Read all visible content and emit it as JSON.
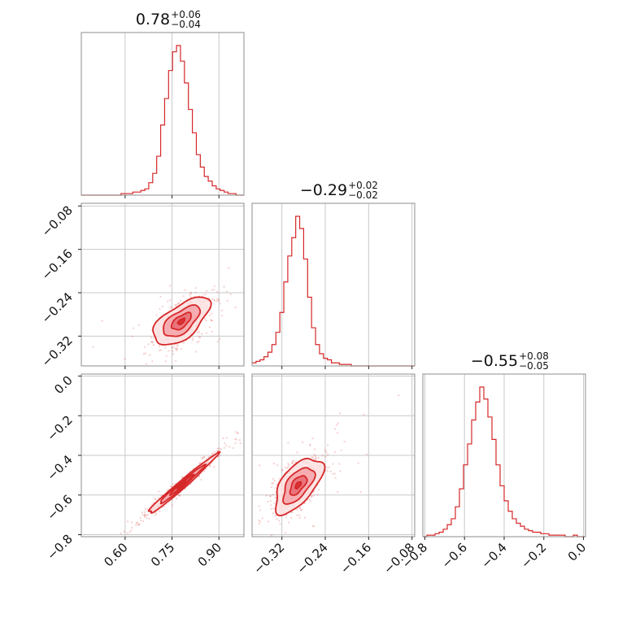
{
  "chart_data": {
    "type": "corner",
    "color": "#d62728",
    "contour_fill_colors": [
      "#fde2e2",
      "#f5a3a8",
      "#e86a72",
      "#d62728"
    ],
    "parameters": [
      {
        "summary": {
          "median": "0.78",
          "upper": "+0.06",
          "lower": "−0.04"
        },
        "range": [
          0.46,
          0.98
        ],
        "ticks": [
          0.6,
          0.75,
          0.9
        ],
        "tick_labels": [
          "0.60",
          "0.75",
          "0.90"
        ]
      },
      {
        "summary": {
          "median": "−0.29",
          "upper": "+0.02",
          "lower": "−0.02"
        },
        "range": [
          -0.375,
          -0.075
        ],
        "ticks": [
          -0.32,
          -0.24,
          -0.16,
          -0.08
        ],
        "tick_labels": [
          "−0.32",
          "−0.24",
          "−0.16",
          "−0.08"
        ]
      },
      {
        "summary": {
          "median": "−0.55",
          "upper": "+0.08",
          "lower": "−0.05"
        },
        "range": [
          -0.81,
          0.01
        ],
        "ticks": [
          -0.8,
          -0.6,
          -0.4,
          -0.2,
          0.0
        ],
        "tick_labels": [
          "−0.8",
          "−0.6",
          "−0.4",
          "−0.2",
          "0.0"
        ]
      }
    ],
    "histograms": [
      {
        "bins": [
          0.46,
          0.98
        ],
        "counts": [
          0,
          0,
          0,
          0,
          0,
          0,
          0,
          0,
          0,
          0,
          1,
          1,
          1,
          2,
          2,
          3,
          4,
          8,
          14,
          25,
          45,
          62,
          80,
          92,
          96,
          86,
          72,
          55,
          40,
          26,
          18,
          12,
          9,
          6,
          4,
          3,
          2,
          1,
          1,
          0,
          0
        ]
      },
      {
        "bins": [
          -0.375,
          -0.075
        ],
        "counts": [
          2,
          3,
          4,
          6,
          9,
          14,
          22,
          35,
          55,
          72,
          84,
          98,
          90,
          70,
          45,
          25,
          14,
          8,
          5,
          4,
          2,
          2,
          1,
          1,
          1,
          0,
          0,
          0,
          0,
          0,
          0,
          0,
          0,
          0,
          0,
          0,
          0,
          0,
          0,
          0,
          0
        ]
      },
      {
        "bins": [
          -0.81,
          0.01
        ],
        "counts": [
          0,
          1,
          1,
          2,
          3,
          5,
          8,
          12,
          20,
          32,
          48,
          62,
          78,
          90,
          100,
          92,
          80,
          65,
          48,
          34,
          24,
          17,
          12,
          9,
          7,
          5,
          4,
          3,
          3,
          2,
          2,
          1,
          1,
          1,
          1,
          0,
          0,
          1,
          0,
          0
        ]
      }
    ],
    "scatter_2d": [
      {
        "x_param": 0,
        "y_param": 1,
        "center": [
          0.78,
          -0.293
        ],
        "spread": [
          0.045,
          0.022
        ],
        "correlation": 0.62
      },
      {
        "x_param": 0,
        "y_param": 2,
        "center": [
          0.78,
          -0.55
        ],
        "spread": [
          0.055,
          0.075
        ],
        "correlation": 0.985
      },
      {
        "x_param": 1,
        "y_param": 2,
        "center": [
          -0.29,
          -0.55
        ],
        "spread": [
          0.022,
          0.07
        ],
        "correlation": 0.6
      }
    ]
  }
}
